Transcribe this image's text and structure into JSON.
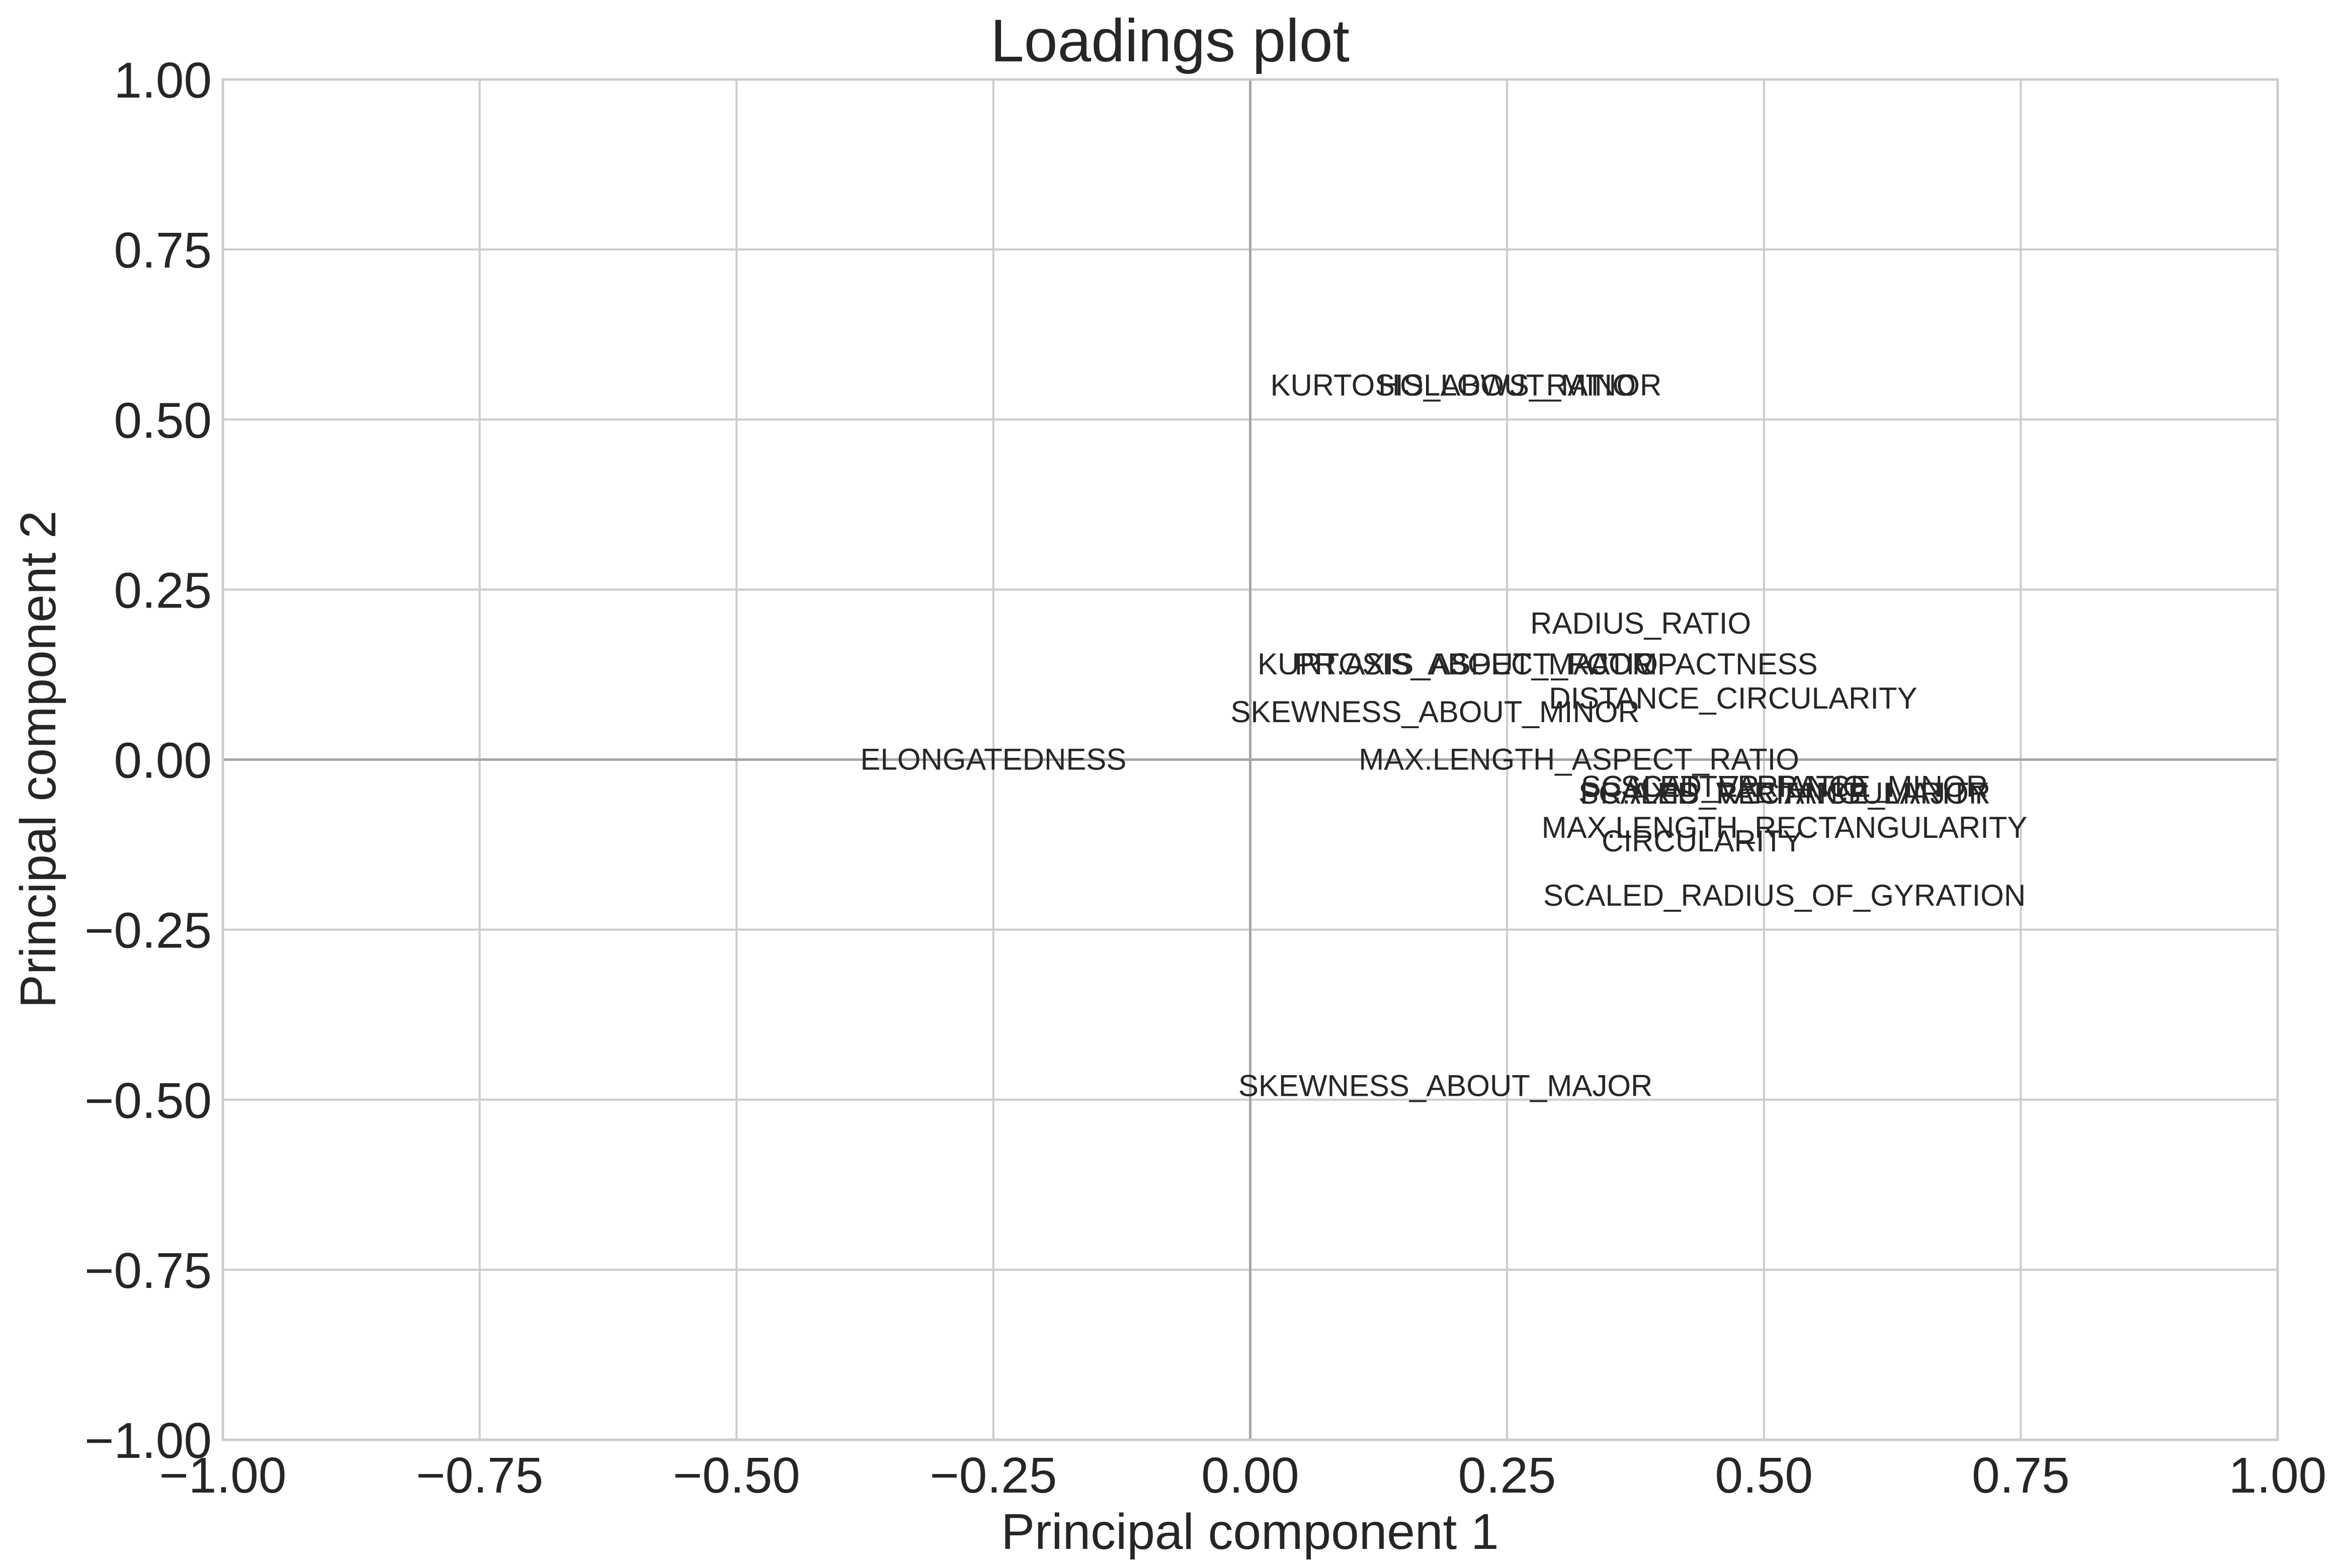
{
  "chart_data": {
    "type": "scatter",
    "title": "Loadings plot",
    "xlabel": "Principal component 1",
    "ylabel": "Principal component 2",
    "xlim": [
      -1.0,
      1.0
    ],
    "ylim": [
      -1.0,
      1.0
    ],
    "xticks": [
      "−1.00",
      "−0.75",
      "−0.50",
      "−0.25",
      "0.00",
      "0.25",
      "0.50",
      "0.75",
      "1.00"
    ],
    "yticks": [
      "−1.00",
      "−0.75",
      "−0.50",
      "−0.25",
      "0.00",
      "0.25",
      "0.50",
      "0.75",
      "1.00"
    ],
    "grid": true,
    "points": [
      {
        "label": "KURTOSIS_ABOUT_MINOR",
        "x": 0.21,
        "y": 0.55
      },
      {
        "label": "HOLLOWS_RATIO",
        "x": 0.25,
        "y": 0.55
      },
      {
        "label": "RADIUS_RATIO",
        "x": 0.38,
        "y": 0.2
      },
      {
        "label": "COMPACTNESS",
        "x": 0.44,
        "y": 0.14
      },
      {
        "label": "KURTOSIS_ABOUT_MAJOR",
        "x": 0.2,
        "y": 0.14
      },
      {
        "label": "PR.AXIS_ASPECT_RATIO",
        "x": 0.22,
        "y": 0.14
      },
      {
        "label": "DISTANCE_CIRCULARITY",
        "x": 0.47,
        "y": 0.09
      },
      {
        "label": "SKEWNESS_ABOUT_MINOR",
        "x": 0.18,
        "y": 0.07
      },
      {
        "label": "MAX.LENGTH_ASPECT_RATIO",
        "x": 0.32,
        "y": 0.0
      },
      {
        "label": "ELONGATEDNESS",
        "x": -0.25,
        "y": 0.0
      },
      {
        "label": "SCATTER_RATIO",
        "x": 0.48,
        "y": -0.04
      },
      {
        "label": "SCALED_VARIANCE_MINOR",
        "x": 0.52,
        "y": -0.04
      },
      {
        "label": "SCALED_VARIANCE_MAJOR",
        "x": 0.52,
        "y": -0.05
      },
      {
        "label": "PR.AXIS_RECTANGULARITY",
        "x": 0.52,
        "y": -0.05
      },
      {
        "label": "MAX.LENGTH_RECTANGULARITY",
        "x": 0.52,
        "y": -0.1
      },
      {
        "label": "CIRCULARITY",
        "x": 0.44,
        "y": -0.12
      },
      {
        "label": "SCALED_RADIUS_OF_GYRATION",
        "x": 0.52,
        "y": -0.2
      },
      {
        "label": "SKEWNESS_ABOUT_MAJOR",
        "x": 0.19,
        "y": -0.48
      }
    ]
  }
}
